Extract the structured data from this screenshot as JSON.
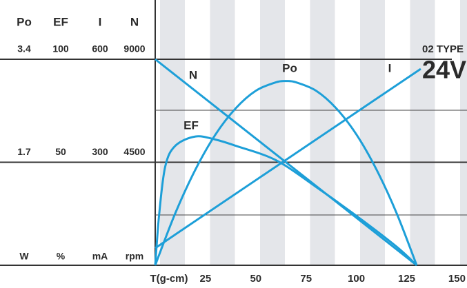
{
  "chart_data": {
    "type": "line",
    "xlabel": "T(g-cm)",
    "xlim": [
      0,
      155
    ],
    "xticks": [
      25,
      50,
      75,
      100,
      125,
      150
    ],
    "scales": [
      {
        "name": "Po",
        "unit": "W",
        "ylim": [
          0,
          3.4
        ],
        "yticks": [
          1.7,
          3.4
        ]
      },
      {
        "name": "EF",
        "unit": "%",
        "ylim": [
          0,
          100
        ],
        "yticks": [
          50,
          100
        ]
      },
      {
        "name": "I",
        "unit": "mA",
        "ylim": [
          0,
          600
        ],
        "yticks": [
          300,
          600
        ]
      },
      {
        "name": "N",
        "unit": "rpm",
        "ylim": [
          0,
          9000
        ],
        "yticks": [
          4500,
          9000
        ]
      }
    ],
    "series": [
      {
        "name": "N",
        "scale": 3,
        "color": "#1d9fd8",
        "x": [
          0,
          130
        ],
        "values": [
          9000,
          0
        ]
      },
      {
        "name": "Po",
        "scale": 0,
        "color": "#1d9fd8",
        "x": [
          0,
          10,
          20,
          30,
          40,
          50,
          60,
          65,
          70,
          80,
          90,
          100,
          110,
          120,
          130
        ],
        "values": [
          0,
          0.86,
          1.58,
          2.16,
          2.59,
          2.88,
          3.02,
          3.04,
          3.02,
          2.88,
          2.59,
          2.16,
          1.58,
          0.86,
          0
        ]
      },
      {
        "name": "I",
        "scale": 2,
        "color": "#1d9fd8",
        "x": [
          0,
          132
        ],
        "values": [
          50,
          572
        ]
      },
      {
        "name": "EF",
        "scale": 1,
        "color": "#1d9fd8",
        "x": [
          0,
          2,
          5,
          10,
          20,
          30,
          40,
          60,
          80,
          100,
          120,
          130
        ],
        "values": [
          0,
          25,
          48,
          58,
          62.5,
          61,
          58,
          51,
          38,
          24,
          9,
          0
        ]
      }
    ],
    "annotations": [
      "02 TYPE",
      "24V"
    ]
  }
}
